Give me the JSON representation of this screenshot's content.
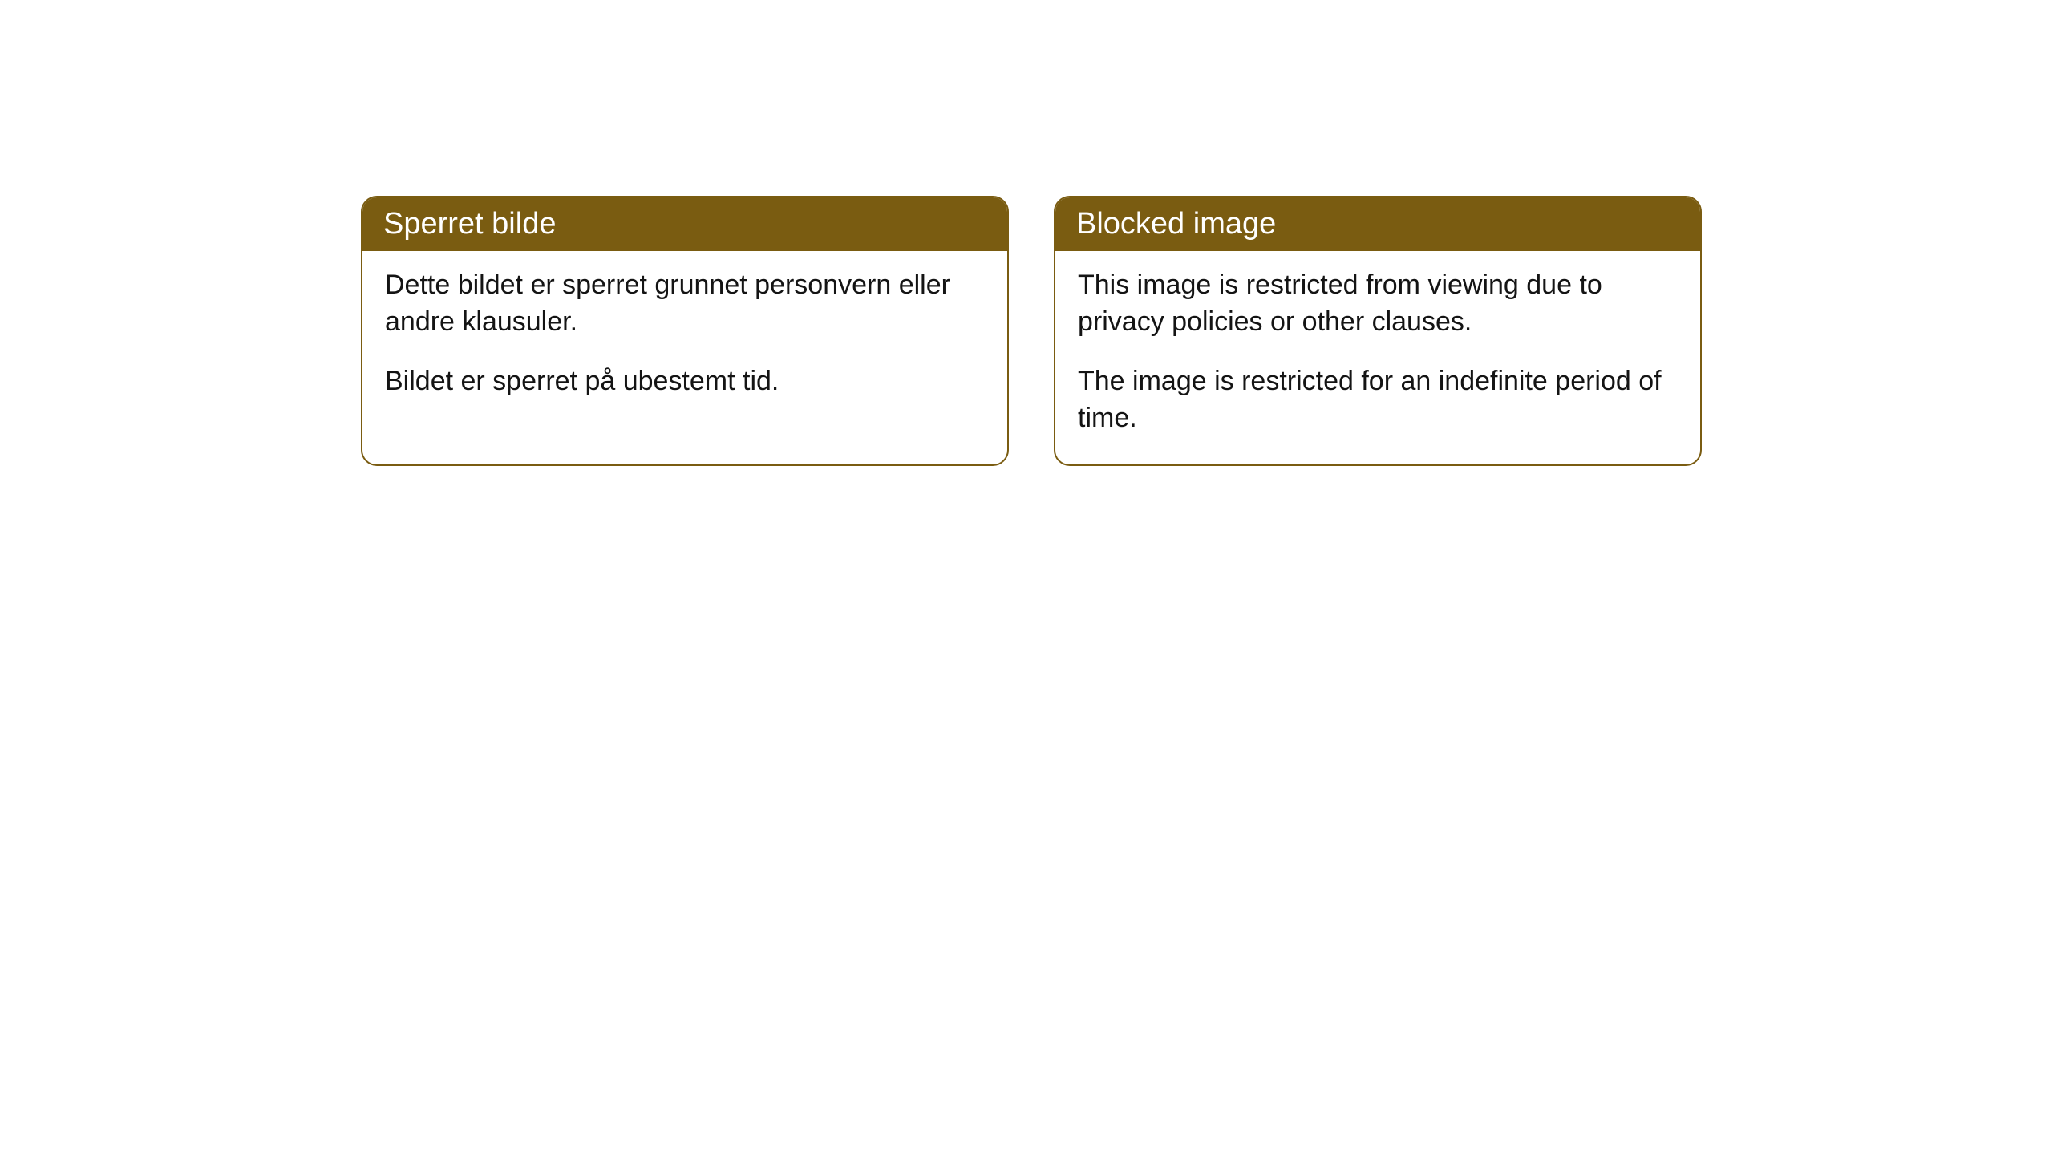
{
  "cards": [
    {
      "title": "Sperret bilde",
      "paragraph1": "Dette bildet er sperret grunnet personvern eller andre klausuler.",
      "paragraph2": "Bildet er sperret på ubestemt tid."
    },
    {
      "title": "Blocked image",
      "paragraph1": "This image is restricted from viewing due to privacy policies or other clauses.",
      "paragraph2": "The image is restricted for an indefinite period of time."
    }
  ],
  "colors": {
    "header_bg": "#7a5c11",
    "header_text": "#ffffff",
    "border": "#7a5c11",
    "body_text": "#141414",
    "background": "#ffffff"
  }
}
